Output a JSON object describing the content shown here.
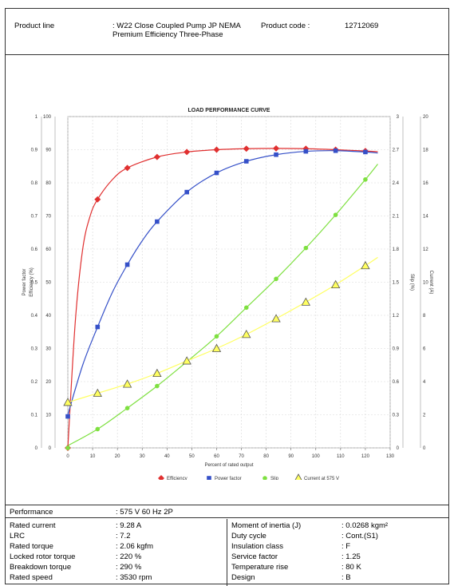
{
  "header": {
    "product_line_label": "Product line",
    "product_line_value": ": W22 Close Coupled Pump JP NEMA Premium Efficiency Three-Phase",
    "product_code_label": "Product code :",
    "product_code_value": "12712069"
  },
  "chart_data": {
    "type": "line",
    "title": "LOAD PERFORMANCE CURVE",
    "xlabel": "Percent of rated output",
    "xlim": [
      0,
      130
    ],
    "x_ticks": [
      "0",
      "10",
      "20",
      "30",
      "40",
      "50",
      "60",
      "70",
      "80",
      "90",
      "100",
      "110",
      "120",
      "130"
    ],
    "axes": {
      "power_factor": {
        "label": "Power factor",
        "range": [
          0,
          1
        ],
        "ticks": [
          "0",
          "0.1",
          "0.2",
          "0.3",
          "0.4",
          "0.5",
          "0.6",
          "0.7",
          "0.8",
          "0.9",
          "1"
        ]
      },
      "efficiency": {
        "label": "Efficiency (%)",
        "range": [
          0,
          100
        ],
        "ticks": [
          "0",
          "10",
          "20",
          "30",
          "40",
          "50",
          "60",
          "70",
          "80",
          "90",
          "100"
        ]
      },
      "slip": {
        "label": "Slip (%)",
        "range": [
          0,
          3
        ],
        "ticks": [
          "0",
          "0.3",
          "0.6",
          "0.9",
          "1.2",
          "1.5",
          "1.8",
          "2.1",
          "2.4",
          "2.7",
          "3"
        ]
      },
      "current": {
        "label": "Current (A)",
        "range": [
          0,
          20
        ],
        "ticks": [
          "0",
          "2",
          "4",
          "6",
          "8",
          "10",
          "12",
          "14",
          "16",
          "18",
          "20"
        ]
      }
    },
    "series": [
      {
        "name": "Efficiency",
        "axis": "efficiency",
        "color": "#e03030",
        "marker": "diamond",
        "x": [
          0,
          12,
          24,
          36,
          48,
          60,
          72,
          84,
          96,
          108,
          120
        ],
        "y": [
          0,
          75,
          84.5,
          87.8,
          89.3,
          90,
          90.3,
          90.4,
          90.3,
          90,
          89.6
        ],
        "curve_x": [
          0,
          3,
          6,
          9,
          12,
          18,
          24,
          36,
          48,
          60,
          72,
          84,
          96,
          108,
          120,
          125
        ],
        "curve_y": [
          0,
          38,
          60,
          70,
          75,
          81,
          84.5,
          87.8,
          89.3,
          90,
          90.3,
          90.4,
          90.3,
          90,
          89.6,
          89.4
        ]
      },
      {
        "name": "Power factor",
        "axis": "power_factor",
        "color": "#3550c8",
        "marker": "square",
        "x": [
          0,
          12,
          24,
          36,
          48,
          60,
          72,
          84,
          96,
          108,
          120
        ],
        "y": [
          0.095,
          0.365,
          0.553,
          0.683,
          0.772,
          0.83,
          0.865,
          0.885,
          0.895,
          0.897,
          0.893
        ],
        "curve_x": [
          0,
          6,
          12,
          18,
          24,
          30,
          36,
          48,
          60,
          72,
          84,
          96,
          108,
          120,
          125
        ],
        "curve_y": [
          0.1,
          0.25,
          0.365,
          0.47,
          0.553,
          0.625,
          0.683,
          0.772,
          0.83,
          0.865,
          0.885,
          0.895,
          0.897,
          0.893,
          0.89
        ]
      },
      {
        "name": "Slip",
        "axis": "slip",
        "color": "#7ee040",
        "marker": "circle",
        "x": [
          0,
          12,
          24,
          36,
          48,
          60,
          72,
          84,
          96,
          108,
          120
        ],
        "y": [
          0,
          0.17,
          0.36,
          0.56,
          0.78,
          1.01,
          1.27,
          1.53,
          1.81,
          2.11,
          2.43
        ],
        "curve_x": [
          0,
          12,
          24,
          36,
          48,
          60,
          72,
          84,
          96,
          108,
          120,
          125
        ],
        "curve_y": [
          0.02,
          0.17,
          0.36,
          0.56,
          0.78,
          1.01,
          1.27,
          1.53,
          1.81,
          2.11,
          2.43,
          2.57
        ]
      },
      {
        "name": "Current at 575 V",
        "axis": "current",
        "color": "#ffff60",
        "marker": "triangle",
        "x": [
          0,
          12,
          24,
          36,
          48,
          60,
          72,
          84,
          96,
          108,
          120
        ],
        "y": [
          2.75,
          3.3,
          3.85,
          4.5,
          5.25,
          6,
          6.85,
          7.8,
          8.8,
          9.85,
          11
        ],
        "curve_x": [
          0,
          12,
          24,
          36,
          48,
          60,
          72,
          84,
          96,
          108,
          120,
          125
        ],
        "curve_y": [
          2.75,
          3.3,
          3.85,
          4.5,
          5.25,
          6,
          6.85,
          7.8,
          8.8,
          9.85,
          11,
          11.5
        ]
      }
    ],
    "legend_position": "bottom",
    "grid": true
  },
  "performance": {
    "label": "Performance",
    "value": ": 575 V 60 Hz 2P"
  },
  "specs_left": [
    {
      "label": "Rated current",
      "value": ": 9.28 A"
    },
    {
      "label": "LRC",
      "value": ": 7.2"
    },
    {
      "label": "Rated torque",
      "value": ": 2.06 kgfm"
    },
    {
      "label": "Locked rotor torque",
      "value": ": 220 %"
    },
    {
      "label": "Breakdown torque",
      "value": ": 290 %"
    },
    {
      "label": "Rated speed",
      "value": ": 3530 rpm"
    }
  ],
  "specs_right": [
    {
      "label": "Moment of inertia (J)",
      "value": ": 0.0268 kgm²"
    },
    {
      "label": "Duty cycle",
      "value": ": Cont.(S1)"
    },
    {
      "label": "Insulation class",
      "value": ": F"
    },
    {
      "label": "Service factor",
      "value": ": 1.25"
    },
    {
      "label": "Temperature rise",
      "value": ": 80 K"
    },
    {
      "label": "Design",
      "value": ": B"
    }
  ]
}
